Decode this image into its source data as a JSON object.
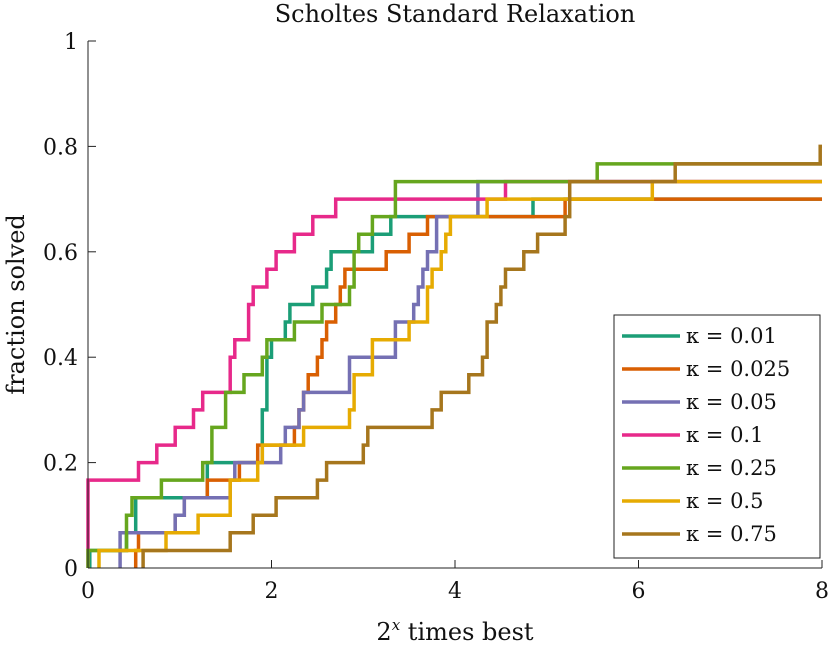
{
  "chart_data": {
    "type": "line",
    "step": true,
    "title": "Scholtes Standard Relaxation",
    "xlabel": {
      "base": "2",
      "exponent": "x",
      "rest": " times best"
    },
    "ylabel": "fraction solved",
    "xlim": [
      0,
      8
    ],
    "ylim": [
      0,
      1
    ],
    "xticks": [
      "0",
      "2",
      "4",
      "6",
      "8"
    ],
    "yticks": [
      "0",
      "0.2",
      "0.4",
      "0.6",
      "0.8",
      "1"
    ],
    "legend_position": "bottom-right",
    "series": [
      {
        "name": "κ = 0.01",
        "color": "#1b9e77",
        "points": [
          [
            0.02,
            0.0
          ],
          [
            0.02,
            0.0333
          ],
          [
            0.42,
            0.0333
          ],
          [
            0.42,
            0.0667
          ],
          [
            0.52,
            0.0667
          ],
          [
            0.52,
            0.1333
          ],
          [
            1.3,
            0.1333
          ],
          [
            1.3,
            0.2
          ],
          [
            1.9,
            0.2
          ],
          [
            1.9,
            0.3
          ],
          [
            1.95,
            0.3
          ],
          [
            1.95,
            0.4
          ],
          [
            2.0,
            0.4
          ],
          [
            2.0,
            0.4333
          ],
          [
            2.15,
            0.4333
          ],
          [
            2.15,
            0.4667
          ],
          [
            2.2,
            0.4667
          ],
          [
            2.2,
            0.5
          ],
          [
            2.45,
            0.5
          ],
          [
            2.45,
            0.5333
          ],
          [
            2.6,
            0.5333
          ],
          [
            2.6,
            0.5667
          ],
          [
            2.65,
            0.5667
          ],
          [
            2.65,
            0.6
          ],
          [
            3.1,
            0.6
          ],
          [
            3.1,
            0.6333
          ],
          [
            3.3,
            0.6333
          ],
          [
            3.3,
            0.6667
          ],
          [
            4.85,
            0.6667
          ],
          [
            4.85,
            0.7
          ],
          [
            8.0,
            0.7
          ]
        ]
      },
      {
        "name": "κ = 0.025",
        "color": "#d95f02",
        "points": [
          [
            0.52,
            0.0
          ],
          [
            0.52,
            0.0333
          ],
          [
            0.55,
            0.0333
          ],
          [
            0.55,
            0.0667
          ],
          [
            0.95,
            0.0667
          ],
          [
            0.95,
            0.1
          ],
          [
            1.05,
            0.1
          ],
          [
            1.05,
            0.1333
          ],
          [
            1.3,
            0.1333
          ],
          [
            1.3,
            0.1667
          ],
          [
            1.65,
            0.1667
          ],
          [
            1.65,
            0.2
          ],
          [
            1.85,
            0.2
          ],
          [
            1.85,
            0.2333
          ],
          [
            2.25,
            0.2333
          ],
          [
            2.25,
            0.2667
          ],
          [
            2.3,
            0.2667
          ],
          [
            2.3,
            0.3
          ],
          [
            2.35,
            0.3
          ],
          [
            2.35,
            0.3333
          ],
          [
            2.4,
            0.3333
          ],
          [
            2.4,
            0.3667
          ],
          [
            2.5,
            0.3667
          ],
          [
            2.5,
            0.4
          ],
          [
            2.55,
            0.4
          ],
          [
            2.55,
            0.4333
          ],
          [
            2.6,
            0.4333
          ],
          [
            2.6,
            0.4667
          ],
          [
            2.7,
            0.4667
          ],
          [
            2.7,
            0.5
          ],
          [
            2.75,
            0.5
          ],
          [
            2.75,
            0.5333
          ],
          [
            2.8,
            0.5333
          ],
          [
            2.8,
            0.5667
          ],
          [
            3.25,
            0.5667
          ],
          [
            3.25,
            0.6
          ],
          [
            3.5,
            0.6
          ],
          [
            3.5,
            0.6333
          ],
          [
            3.7,
            0.6333
          ],
          [
            3.7,
            0.6667
          ],
          [
            5.2,
            0.6667
          ],
          [
            5.2,
            0.7
          ],
          [
            8.0,
            0.7
          ]
        ]
      },
      {
        "name": "κ = 0.05",
        "color": "#7570b3",
        "points": [
          [
            0.35,
            0.0
          ],
          [
            0.35,
            0.0667
          ],
          [
            0.95,
            0.0667
          ],
          [
            0.95,
            0.1
          ],
          [
            1.05,
            0.1
          ],
          [
            1.05,
            0.1333
          ],
          [
            1.55,
            0.1333
          ],
          [
            1.55,
            0.1667
          ],
          [
            1.6,
            0.1667
          ],
          [
            1.6,
            0.2
          ],
          [
            2.1,
            0.2
          ],
          [
            2.1,
            0.2333
          ],
          [
            2.15,
            0.2333
          ],
          [
            2.15,
            0.2667
          ],
          [
            2.3,
            0.2667
          ],
          [
            2.3,
            0.3
          ],
          [
            2.35,
            0.3
          ],
          [
            2.35,
            0.3333
          ],
          [
            2.85,
            0.3333
          ],
          [
            2.85,
            0.4
          ],
          [
            3.35,
            0.4
          ],
          [
            3.35,
            0.4667
          ],
          [
            3.55,
            0.4667
          ],
          [
            3.55,
            0.5
          ],
          [
            3.6,
            0.5
          ],
          [
            3.6,
            0.5333
          ],
          [
            3.65,
            0.5333
          ],
          [
            3.65,
            0.5667
          ],
          [
            3.7,
            0.5667
          ],
          [
            3.7,
            0.6
          ],
          [
            3.8,
            0.6
          ],
          [
            3.8,
            0.6667
          ],
          [
            4.25,
            0.6667
          ],
          [
            4.25,
            0.7333
          ],
          [
            8.0,
            0.7333
          ]
        ]
      },
      {
        "name": "κ = 0.1",
        "color": "#e7298a",
        "points": [
          [
            0.0,
            0.0
          ],
          [
            0.0,
            0.1667
          ],
          [
            0.55,
            0.1667
          ],
          [
            0.55,
            0.2
          ],
          [
            0.75,
            0.2
          ],
          [
            0.75,
            0.2333
          ],
          [
            0.95,
            0.2333
          ],
          [
            0.95,
            0.2667
          ],
          [
            1.15,
            0.2667
          ],
          [
            1.15,
            0.3
          ],
          [
            1.25,
            0.3
          ],
          [
            1.25,
            0.3333
          ],
          [
            1.55,
            0.3333
          ],
          [
            1.55,
            0.4
          ],
          [
            1.6,
            0.4
          ],
          [
            1.6,
            0.4333
          ],
          [
            1.75,
            0.4333
          ],
          [
            1.75,
            0.5
          ],
          [
            1.8,
            0.5
          ],
          [
            1.8,
            0.5333
          ],
          [
            1.95,
            0.5333
          ],
          [
            1.95,
            0.5667
          ],
          [
            2.05,
            0.5667
          ],
          [
            2.05,
            0.6
          ],
          [
            2.25,
            0.6
          ],
          [
            2.25,
            0.6333
          ],
          [
            2.45,
            0.6333
          ],
          [
            2.45,
            0.6667
          ],
          [
            2.7,
            0.6667
          ],
          [
            2.7,
            0.7
          ],
          [
            4.55,
            0.7
          ],
          [
            4.55,
            0.7333
          ],
          [
            8.0,
            0.7333
          ]
        ]
      },
      {
        "name": "κ = 0.25",
        "color": "#66a61e",
        "points": [
          [
            0.0,
            0.0
          ],
          [
            0.0,
            0.0333
          ],
          [
            0.42,
            0.0333
          ],
          [
            0.42,
            0.1
          ],
          [
            0.48,
            0.1
          ],
          [
            0.48,
            0.1333
          ],
          [
            0.8,
            0.1333
          ],
          [
            0.8,
            0.1667
          ],
          [
            1.25,
            0.1667
          ],
          [
            1.25,
            0.2
          ],
          [
            1.35,
            0.2
          ],
          [
            1.35,
            0.2667
          ],
          [
            1.5,
            0.2667
          ],
          [
            1.5,
            0.3
          ],
          [
            1.5,
            0.3
          ],
          [
            1.5,
            0.3333
          ],
          [
            1.7,
            0.3333
          ],
          [
            1.7,
            0.3667
          ],
          [
            1.9,
            0.3667
          ],
          [
            1.9,
            0.4
          ],
          [
            1.95,
            0.4
          ],
          [
            1.95,
            0.4333
          ],
          [
            2.25,
            0.4333
          ],
          [
            2.25,
            0.4667
          ],
          [
            2.55,
            0.4667
          ],
          [
            2.55,
            0.5
          ],
          [
            2.85,
            0.5
          ],
          [
            2.85,
            0.5333
          ],
          [
            2.9,
            0.5333
          ],
          [
            2.9,
            0.6
          ],
          [
            2.95,
            0.6
          ],
          [
            2.95,
            0.6333
          ],
          [
            3.1,
            0.6333
          ],
          [
            3.1,
            0.6667
          ],
          [
            3.35,
            0.6667
          ],
          [
            3.35,
            0.7333
          ],
          [
            5.55,
            0.7333
          ],
          [
            5.55,
            0.7667
          ],
          [
            8.0,
            0.7667
          ]
        ]
      },
      {
        "name": "κ = 0.5",
        "color": "#e6ab02",
        "points": [
          [
            0.12,
            0.0
          ],
          [
            0.12,
            0.0333
          ],
          [
            0.85,
            0.0333
          ],
          [
            0.85,
            0.0667
          ],
          [
            1.2,
            0.0667
          ],
          [
            1.2,
            0.1
          ],
          [
            1.55,
            0.1
          ],
          [
            1.55,
            0.1667
          ],
          [
            1.85,
            0.1667
          ],
          [
            1.85,
            0.2
          ],
          [
            1.9,
            0.2
          ],
          [
            1.9,
            0.2333
          ],
          [
            2.35,
            0.2333
          ],
          [
            2.35,
            0.2667
          ],
          [
            2.85,
            0.2667
          ],
          [
            2.85,
            0.3
          ],
          [
            2.9,
            0.3
          ],
          [
            2.9,
            0.3667
          ],
          [
            3.1,
            0.3667
          ],
          [
            3.1,
            0.4333
          ],
          [
            3.5,
            0.4333
          ],
          [
            3.5,
            0.4667
          ],
          [
            3.7,
            0.4667
          ],
          [
            3.7,
            0.5333
          ],
          [
            3.75,
            0.5333
          ],
          [
            3.75,
            0.5667
          ],
          [
            3.85,
            0.5667
          ],
          [
            3.85,
            0.6
          ],
          [
            3.9,
            0.6
          ],
          [
            3.9,
            0.6333
          ],
          [
            3.95,
            0.6333
          ],
          [
            3.95,
            0.6667
          ],
          [
            4.35,
            0.6667
          ],
          [
            4.35,
            0.7
          ],
          [
            6.15,
            0.7
          ],
          [
            6.15,
            0.7333
          ],
          [
            8.0,
            0.7333
          ]
        ]
      },
      {
        "name": "κ = 0.75",
        "color": "#a6761d",
        "points": [
          [
            0.6,
            0.0
          ],
          [
            0.6,
            0.0333
          ],
          [
            1.55,
            0.0333
          ],
          [
            1.55,
            0.0667
          ],
          [
            1.8,
            0.0667
          ],
          [
            1.8,
            0.1
          ],
          [
            2.05,
            0.1
          ],
          [
            2.05,
            0.1333
          ],
          [
            2.5,
            0.1333
          ],
          [
            2.5,
            0.1667
          ],
          [
            2.6,
            0.1667
          ],
          [
            2.6,
            0.2
          ],
          [
            3.0,
            0.2
          ],
          [
            3.0,
            0.2333
          ],
          [
            3.05,
            0.2333
          ],
          [
            3.05,
            0.2667
          ],
          [
            3.75,
            0.2667
          ],
          [
            3.75,
            0.3
          ],
          [
            3.85,
            0.3
          ],
          [
            3.85,
            0.3333
          ],
          [
            4.15,
            0.3333
          ],
          [
            4.15,
            0.3667
          ],
          [
            4.3,
            0.3667
          ],
          [
            4.3,
            0.4
          ],
          [
            4.35,
            0.4
          ],
          [
            4.35,
            0.4667
          ],
          [
            4.45,
            0.4667
          ],
          [
            4.45,
            0.5
          ],
          [
            4.5,
            0.5
          ],
          [
            4.5,
            0.5333
          ],
          [
            4.55,
            0.5333
          ],
          [
            4.55,
            0.5667
          ],
          [
            4.75,
            0.5667
          ],
          [
            4.75,
            0.6
          ],
          [
            4.9,
            0.6
          ],
          [
            4.9,
            0.6333
          ],
          [
            5.2,
            0.6333
          ],
          [
            5.2,
            0.6667
          ],
          [
            5.25,
            0.6667
          ],
          [
            5.25,
            0.7333
          ],
          [
            6.4,
            0.7333
          ],
          [
            6.4,
            0.7667
          ],
          [
            7.98,
            0.7667
          ],
          [
            7.98,
            0.8
          ],
          [
            8.0,
            0.8
          ]
        ]
      }
    ]
  }
}
